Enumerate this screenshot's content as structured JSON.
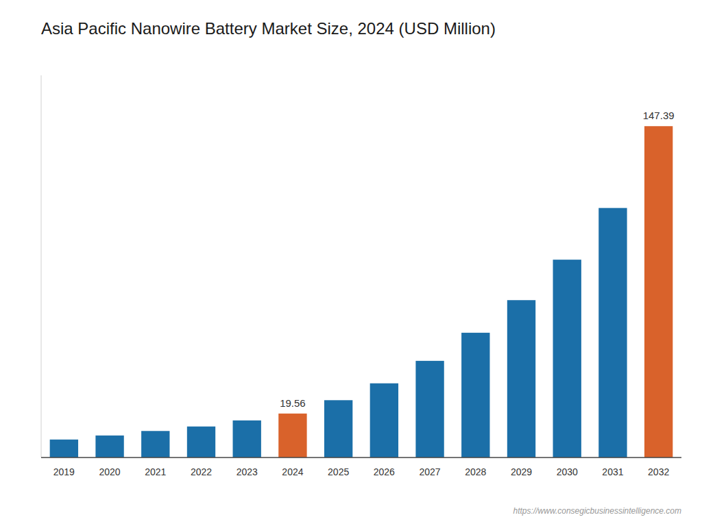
{
  "chart_data": {
    "type": "bar",
    "title": "Asia Pacific Nanowire Battery Market Size, 2024 (USD Million)",
    "categories": [
      "2019",
      "2020",
      "2021",
      "2022",
      "2023",
      "2024",
      "2025",
      "2026",
      "2027",
      "2028",
      "2029",
      "2030",
      "2031",
      "2032"
    ],
    "values": [
      8.0,
      9.8,
      11.8,
      13.8,
      16.5,
      19.56,
      25.5,
      33.0,
      43.0,
      55.5,
      70.0,
      88.0,
      111.0,
      147.39
    ],
    "colors": [
      "#1b6fa8",
      "#1b6fa8",
      "#1b6fa8",
      "#1b6fa8",
      "#1b6fa8",
      "#d9622b",
      "#1b6fa8",
      "#1b6fa8",
      "#1b6fa8",
      "#1b6fa8",
      "#1b6fa8",
      "#1b6fa8",
      "#1b6fa8",
      "#d9622b"
    ],
    "annotations": [
      {
        "x": "2024",
        "y": 19.56,
        "text": "19.56"
      },
      {
        "x": "2032",
        "y": 147.39,
        "text": "147.39"
      },
      {
        "text": "https://www.consegicbusinessintelligence.com"
      }
    ],
    "ylim": [
      0,
      170
    ],
    "grid": false,
    "tick_labels": "x"
  }
}
